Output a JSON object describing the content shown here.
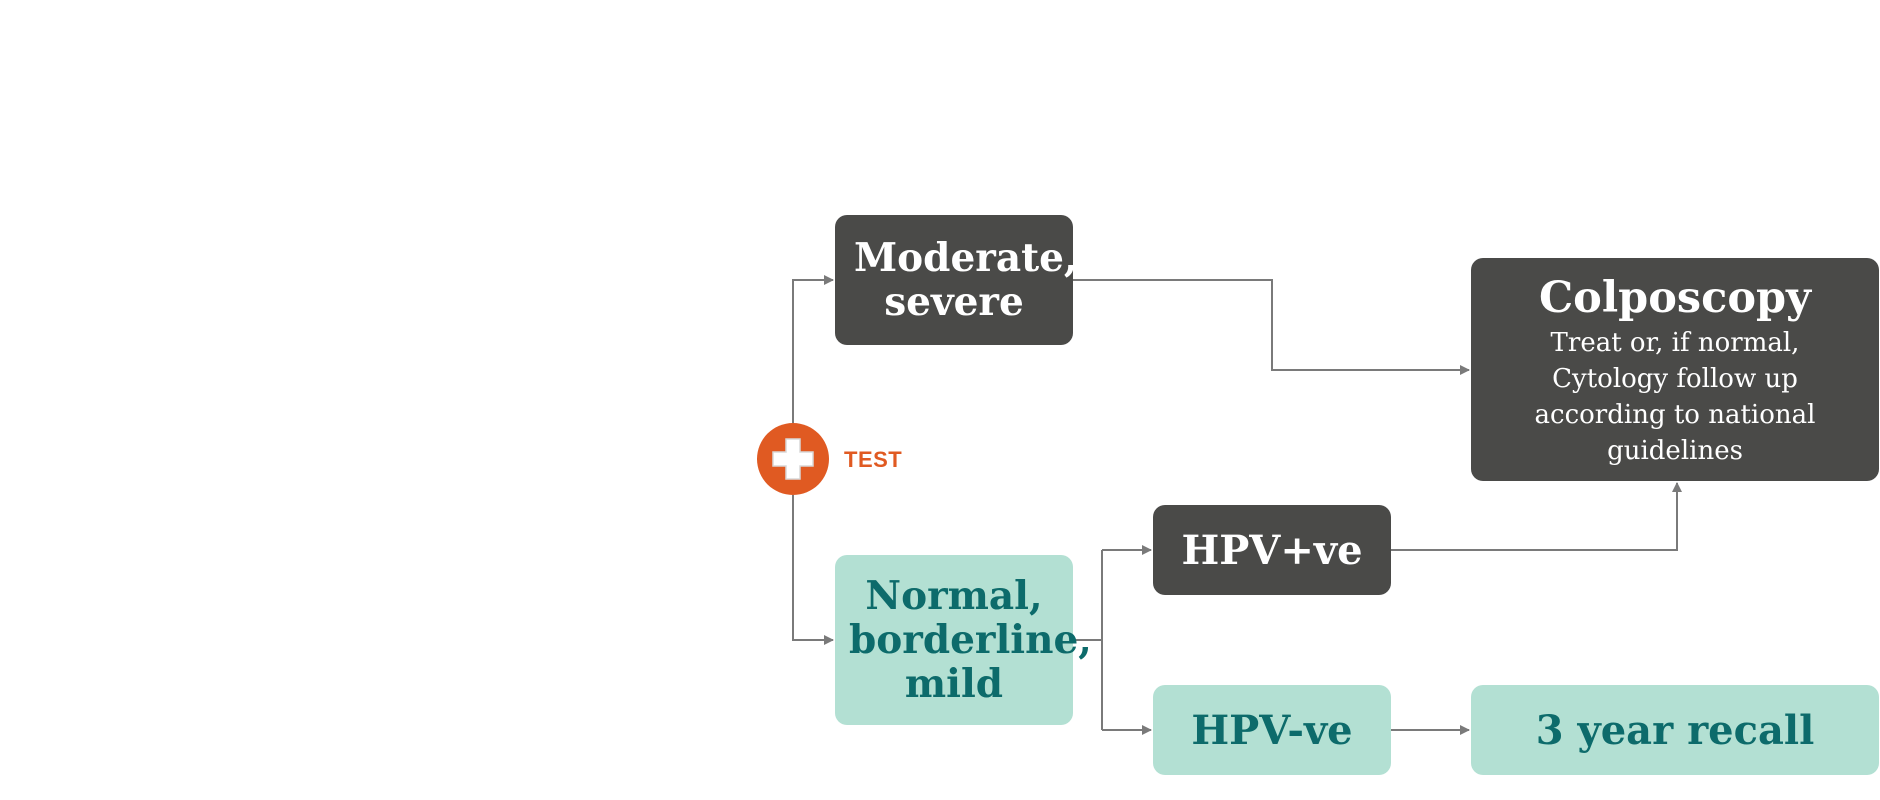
{
  "nodes": {
    "moderate": "Moderate, severe",
    "normal": "Normal, borderline, mild",
    "hpv_positive": "HPV+ve",
    "hpv_negative": "HPV-ve",
    "colposcopy_title": "Colposcopy",
    "colposcopy_desc": "Treat or, if normal, Cytology follow up according to national guidelines",
    "recall": "3 year recall"
  },
  "test": {
    "label": "TEST",
    "icon": "plus-icon"
  },
  "colors": {
    "dark_box": "#4a4a48",
    "light_box": "#b3e0d3",
    "light_text": "#0d6b6b",
    "accent": "#e05a22",
    "connector": "#7a7a7a"
  }
}
